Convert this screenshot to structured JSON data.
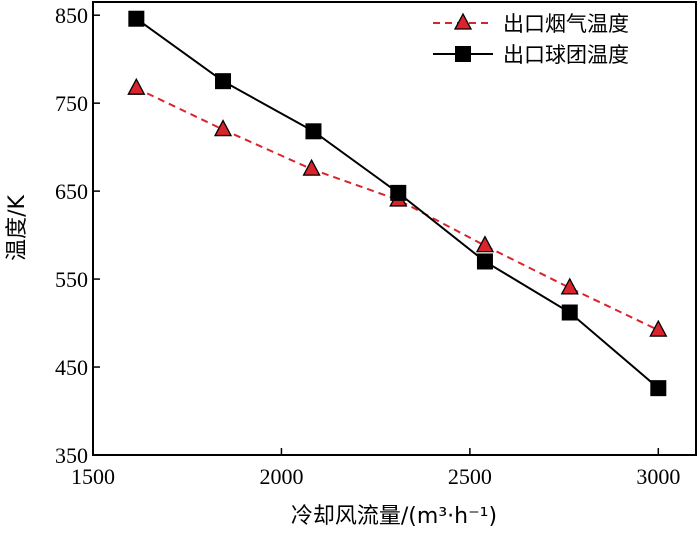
{
  "chart_data": {
    "type": "line",
    "xlabel": "冷却风流量/(m³·h⁻¹)",
    "ylabel": "温度/K",
    "xlim": [
      1500,
      3100
    ],
    "ylim": [
      350,
      865
    ],
    "x_ticks": [
      "1500",
      "2000",
      "2500",
      "3000"
    ],
    "y_ticks": [
      "350",
      "450",
      "550",
      "650",
      "750",
      "850"
    ],
    "grid": false,
    "legend_position": "top-right",
    "series": [
      {
        "name": "出口烟气温度",
        "color": "#d9232d",
        "line_style": "dashed",
        "marker": "triangle",
        "x": [
          1615,
          1845,
          2080,
          2310,
          2540,
          2765,
          3000
        ],
        "y": [
          767,
          720,
          675,
          640,
          588,
          540,
          492
        ]
      },
      {
        "name": "出口球团温度",
        "color": "#000000",
        "line_style": "solid",
        "marker": "square",
        "x": [
          1615,
          1845,
          2085,
          2310,
          2540,
          2765,
          3000
        ],
        "y": [
          846,
          775,
          718,
          648,
          570,
          512,
          426
        ]
      }
    ]
  }
}
